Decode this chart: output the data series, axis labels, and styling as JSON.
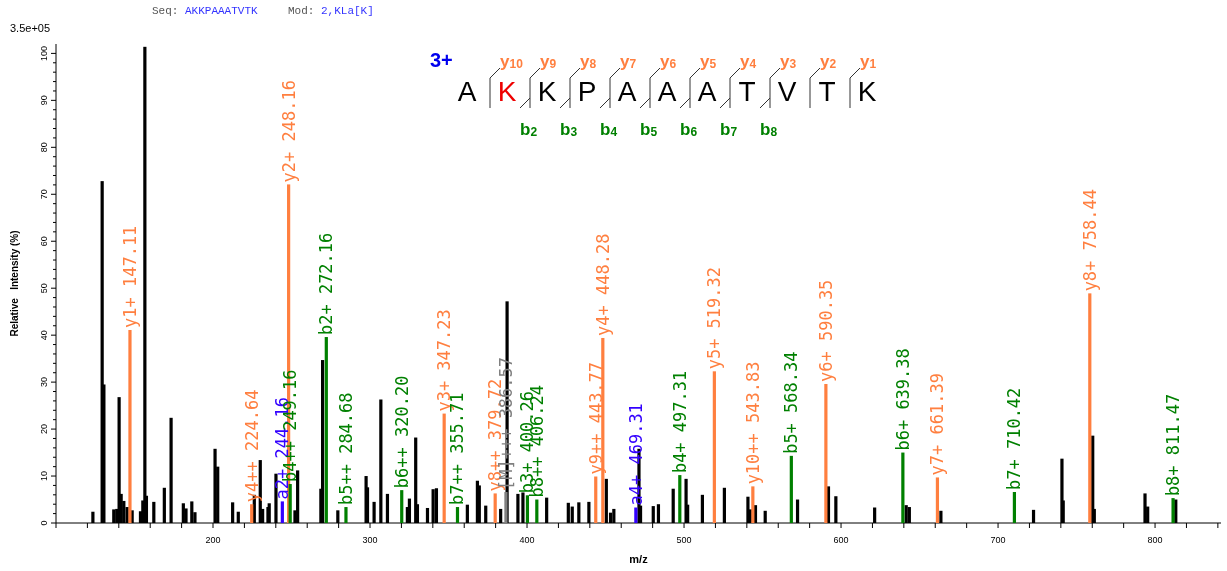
{
  "chart_data": {
    "type": "bar",
    "xlabel": "m/z",
    "ylabel": "Relative   Intensity (%)",
    "xlim": [
      100,
      842
    ],
    "ylim": [
      0,
      102
    ],
    "xticks": [
      {
        "value": 100,
        "label": null
      },
      {
        "value": 120,
        "label": null
      },
      {
        "value": 140,
        "label": null
      },
      {
        "value": 160,
        "label": null
      },
      {
        "value": 180,
        "label": null
      },
      200,
      {
        "value": 220,
        "label": null
      },
      {
        "value": 240,
        "label": null
      },
      {
        "value": 260,
        "label": null
      },
      {
        "value": 280,
        "label": null
      },
      300,
      {
        "value": 320,
        "label": null
      },
      {
        "value": 340,
        "label": null
      },
      {
        "value": 360,
        "label": null
      },
      {
        "value": 380,
        "label": null
      },
      400,
      {
        "value": 420,
        "label": null
      },
      {
        "value": 440,
        "label": null
      },
      {
        "value": 460,
        "label": null
      },
      {
        "value": 480,
        "label": null
      },
      500,
      {
        "value": 520,
        "label": null
      },
      {
        "value": 540,
        "label": null
      },
      {
        "value": 560,
        "label": null
      },
      {
        "value": 580,
        "label": null
      },
      600,
      {
        "value": 620,
        "label": null
      },
      {
        "value": 640,
        "label": null
      },
      {
        "value": 660,
        "label": null
      },
      {
        "value": 680,
        "label": null
      },
      700,
      {
        "value": 720,
        "label": null
      },
      {
        "value": 740,
        "label": null
      },
      {
        "value": 760,
        "label": null
      },
      {
        "value": 780,
        "label": null
      },
      800,
      {
        "value": 820,
        "label": null
      },
      {
        "value": 840,
        "label": null
      }
    ],
    "yticks": [
      0,
      {
        "value": 2,
        "label": null
      },
      {
        "value": 4,
        "label": null
      },
      {
        "value": 6,
        "label": null
      },
      {
        "value": 8,
        "label": null
      },
      10,
      {
        "value": 12,
        "label": null
      },
      {
        "value": 14,
        "label": null
      },
      {
        "value": 16,
        "label": null
      },
      {
        "value": 18,
        "label": null
      },
      20,
      {
        "value": 22,
        "label": null
      },
      {
        "value": 24,
        "label": null
      },
      {
        "value": 26,
        "label": null
      },
      {
        "value": 28,
        "label": null
      },
      30,
      {
        "value": 32,
        "label": null
      },
      {
        "value": 34,
        "label": null
      },
      {
        "value": 36,
        "label": null
      },
      {
        "value": 38,
        "label": null
      },
      40,
      {
        "value": 42,
        "label": null
      },
      {
        "value": 44,
        "label": null
      },
      {
        "value": 46,
        "label": null
      },
      {
        "value": 48,
        "label": null
      },
      50,
      {
        "value": 52,
        "label": null
      },
      {
        "value": 54,
        "label": null
      },
      {
        "value": 56,
        "label": null
      },
      {
        "value": 58,
        "label": null
      },
      60,
      {
        "value": 62,
        "label": null
      },
      {
        "value": 64,
        "label": null
      },
      {
        "value": 66,
        "label": null
      },
      {
        "value": 68,
        "label": null
      },
      70,
      {
        "value": 72,
        "label": null
      },
      {
        "value": 74,
        "label": null
      },
      {
        "value": 76,
        "label": null
      },
      {
        "value": 78,
        "label": null
      },
      80,
      {
        "value": 82,
        "label": null
      },
      {
        "value": 84,
        "label": null
      },
      {
        "value": 86,
        "label": null
      },
      {
        "value": 88,
        "label": null
      },
      90,
      {
        "value": 92,
        "label": null
      },
      {
        "value": 94,
        "label": null
      },
      {
        "value": 96,
        "label": null
      },
      {
        "value": 98,
        "label": null
      },
      100
    ],
    "grid": false,
    "series": [
      {
        "color": "#000000",
        "x": [
          123.5,
          129.4,
          130.5,
          136.8,
          138.7,
          140.2,
          141.5,
          143.2,
          145.3,
          148.5,
          153.8,
          155.3,
          156.6,
          157.6,
          162.3,
          169.0,
          173.3,
          181.1,
          182.8,
          186.5,
          188.5,
          201.3,
          203.0,
          212.5,
          216.1,
          226.3,
          230.1,
          231.6,
          235.0,
          235.8,
          240.1,
          252.2,
          253.9,
          268.7,
          269.8,
          279.5,
          297.5,
          298.4,
          302.6,
          306.9,
          311.1,
          323.8,
          325.1,
          329.1,
          330.2,
          336.6,
          340.2,
          342.3,
          362.0,
          368.4,
          369.6,
          373.7,
          383.2,
          387.3,
          394.2,
          397.4,
          412.5,
          426.3,
          428.8,
          433.0,
          439.4,
          450.5,
          453.2,
          455.3,
          471.3,
          472.3,
          480.4,
          483.7,
          493.1,
          501.3,
          502.3,
          511.7,
          525.7,
          540.7,
          542.2,
          545.5,
          551.7,
          572.3,
          592.0,
          596.7,
          621.4,
          641.5,
          643.5,
          663.6,
          722.6,
          740.7,
          741.5,
          760.3,
          761.3,
          793.6,
          795.3,
          813.2
        ],
        "values": [
          2.4,
          72.8,
          29.5,
          2.9,
          3.0,
          26.8,
          6.2,
          4.7,
          3.4,
          2.7,
          2.5,
          4.8,
          101.4,
          5.8,
          4.5,
          7.5,
          22.4,
          4.2,
          3.1,
          4.6,
          2.3,
          15.8,
          12.0,
          4.4,
          2.4,
          6.0,
          13.4,
          3.0,
          3.4,
          4.2,
          10.5,
          2.7,
          11.2,
          7.3,
          34.7,
          2.7,
          10.0,
          7.6,
          4.5,
          26.3,
          6.2,
          3.4,
          5.2,
          18.2,
          4.0,
          3.2,
          7.2,
          7.4,
          3.9,
          9.0,
          8.0,
          3.7,
          3.0,
          47.2,
          6.2,
          6.5,
          5.4,
          4.3,
          3.5,
          4.4,
          4.5,
          9.4,
          2.2,
          3.0,
          15.8,
          3.7,
          3.6,
          4.0,
          7.3,
          9.4,
          3.9,
          6.0,
          7.5,
          5.6,
          2.9,
          3.8,
          2.6,
          5.0,
          7.8,
          5.7,
          3.3,
          3.8,
          3.4,
          2.6,
          2.8,
          13.7,
          4.8,
          18.6,
          3.0,
          6.3,
          3.5,
          5.0
        ]
      },
      {
        "color": "#ff7f3f",
        "x": [
          147.11,
          224.64,
          248.16,
          347.23,
          379.72,
          443.77,
          448.28,
          519.32,
          543.83,
          590.35,
          661.39,
          758.44
        ],
        "values": [
          41.1,
          4.0,
          72.1,
          23.3,
          6.3,
          9.9,
          39.4,
          32.3,
          7.8,
          29.6,
          9.7,
          48.9
        ]
      },
      {
        "color": "#008000",
        "x": [
          249.16,
          272.16,
          284.68,
          320.2,
          355.71,
          400.26,
          406.24,
          497.31,
          568.34,
          639.38,
          710.42,
          811.47
        ],
        "values": [
          8.3,
          39.6,
          3.4,
          7.0,
          3.4,
          5.9,
          5.0,
          10.2,
          14.3,
          15.0,
          6.6,
          5.3
        ]
      },
      {
        "color": "#3300ff",
        "x": [
          244.16,
          469.31
        ],
        "values": [
          4.6,
          3.3
        ]
      },
      {
        "color": "#808080",
        "x": [
          386.57
        ],
        "values": [
          6.6
        ]
      }
    ],
    "annotations": [
      "Seq: AKKPAAATVTK",
      "Mod: 2,KLa[K]",
      "3.5e+05",
      "3+",
      "A",
      "K",
      "K",
      "P",
      "A",
      "A",
      "A",
      "T",
      "V",
      "T",
      "K",
      "y$_{10}$",
      "y$_{9}$",
      "y$_{8}$",
      "y$_{7}$",
      "y$_{6}$",
      "y$_{5}$",
      "y$_{4}$",
      "y$_{3}$",
      "y$_{2}$",
      "y$_{1}$",
      "b$_{2}$",
      "b$_{3}$",
      "b$_{4}$",
      "b$_{5}$",
      "b$_{6}$",
      "b$_{7}$",
      "b$_{8}$",
      {
        "text": "y1+ 147.11",
        "x": 147.11,
        "y": 41.1
      },
      {
        "text": "y4++ 224.64",
        "x": 224.64,
        "y": 4.0
      },
      {
        "text": "a2+ 244.16",
        "x": 244.16,
        "y": 4.6
      },
      {
        "text": "y2+ 248.16",
        "x": 248.16,
        "y": 72.1
      },
      {
        "text": "b4++ 249.16",
        "x": 249.16,
        "y": 8.3
      },
      {
        "text": "b2+ 272.16",
        "x": 272.16,
        "y": 39.6
      },
      {
        "text": "b5++ 284.68",
        "x": 284.68,
        "y": 3.4
      },
      {
        "text": "b6++ 320.20",
        "x": 320.2,
        "y": 7.0
      },
      {
        "text": "y3+ 347.23",
        "x": 347.23,
        "y": 23.3
      },
      {
        "text": "b7++ 355.71",
        "x": 355.71,
        "y": 3.4
      },
      {
        "text": "y8++ 379.72",
        "x": 379.72,
        "y": 6.3
      },
      {
        "text": "[M]+++ 386.57",
        "x": 386.57,
        "y": 6.6
      },
      {
        "text": "b3+ 400.26",
        "x": 400.26,
        "y": 5.9
      },
      {
        "text": "b8++ 406.24",
        "x": 406.24,
        "y": 5.0
      },
      {
        "text": "y9++ 443.77",
        "x": 443.77,
        "y": 9.9
      },
      {
        "text": "y4+ 448.28",
        "x": 448.28,
        "y": 39.4
      },
      {
        "text": "a4+ 469.31",
        "x": 469.31,
        "y": 3.3
      },
      {
        "text": "b4+ 497.31",
        "x": 497.31,
        "y": 10.2
      },
      {
        "text": "y5+ 519.32",
        "x": 519.32,
        "y": 32.3
      },
      {
        "text": "y10++ 543.83",
        "x": 543.83,
        "y": 7.8
      },
      {
        "text": "b5+ 568.34",
        "x": 568.34,
        "y": 14.3
      },
      {
        "text": "y6+ 590.35",
        "x": 590.35,
        "y": 29.6
      },
      {
        "text": "b6+ 639.38",
        "x": 639.38,
        "y": 15.0
      },
      {
        "text": "y7+ 661.39",
        "x": 661.39,
        "y": 9.7
      },
      {
        "text": "b7+ 710.42",
        "x": 710.42,
        "y": 6.6
      },
      {
        "text": "y8+ 758.44",
        "x": 758.44,
        "y": 48.9
      },
      {
        "text": "b8+ 811.47",
        "x": 811.47,
        "y": 5.3
      }
    ]
  }
}
